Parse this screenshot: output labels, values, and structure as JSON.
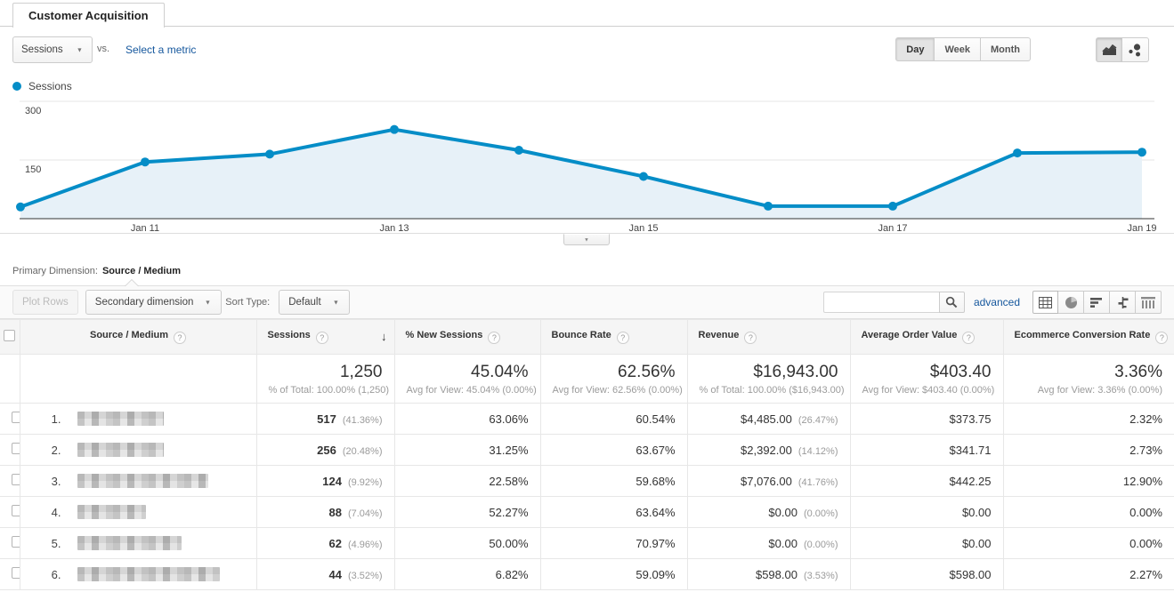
{
  "icons": {
    "help_glyph": "?",
    "caret_glyph": "▼",
    "sort_desc_glyph": "↓",
    "collapse_glyph": "▼"
  },
  "tab": {
    "title": "Customer Acquisition"
  },
  "controls": {
    "metric_button_label": "Sessions",
    "vs_label": "vs.",
    "select_metric_label": "Select a metric",
    "granularity": [
      {
        "label": "Day",
        "active": true
      },
      {
        "label": "Week",
        "active": false
      },
      {
        "label": "Month",
        "active": false
      }
    ]
  },
  "legend": {
    "label": "Sessions",
    "color": "#058dc7"
  },
  "chart_data": {
    "type": "area",
    "title": "Sessions by day",
    "x": [
      "Jan 10",
      "Jan 11",
      "Jan 12",
      "Jan 13",
      "Jan 14",
      "Jan 15",
      "Jan 16",
      "Jan 17",
      "Jan 18",
      "Jan 19"
    ],
    "series": [
      {
        "name": "Sessions",
        "values": [
          30,
          145,
          165,
          228,
          175,
          108,
          32,
          32,
          168,
          170
        ]
      }
    ],
    "x_tick_labels": [
      "Jan 11",
      "Jan 13",
      "Jan 15",
      "Jan 17",
      "Jan 19"
    ],
    "y_ticks": [
      150,
      300
    ],
    "ylim": [
      0,
      300
    ],
    "grid": true,
    "legend_position": "top-left",
    "line_color": "#058dc7",
    "fill_color": "#e7f1f8"
  },
  "primary_dimension": {
    "label": "Primary Dimension:",
    "value": "Source / Medium"
  },
  "toolbar": {
    "plot_rows_label": "Plot Rows",
    "secondary_dimension_label": "Secondary dimension",
    "sort_type_label": "Sort Type:",
    "sort_type_value": "Default",
    "search_value": "",
    "advanced_label": "advanced",
    "view_buttons": [
      "table-view",
      "percentage-view",
      "performance-view",
      "comparison-view",
      "pivot-view"
    ]
  },
  "table": {
    "headers": [
      "Source / Medium",
      "Sessions",
      "% New Sessions",
      "Bounce Rate",
      "Revenue",
      "Average Order Value",
      "Ecommerce Conversion Rate"
    ],
    "summary": {
      "sessions": "1,250",
      "sessions_sub": "% of Total: 100.00% (1,250)",
      "new_sessions": "45.04%",
      "new_sessions_sub": "Avg for View: 45.04% (0.00%)",
      "bounce_rate": "62.56%",
      "bounce_rate_sub": "Avg for View: 62.56% (0.00%)",
      "revenue": "$16,943.00",
      "revenue_sub": "% of Total: 100.00% ($16,943.00)",
      "aov": "$403.40",
      "aov_sub": "Avg for View: $403.40 (0.00%)",
      "ecr": "3.36%",
      "ecr_sub": "Avg for View: 3.36% (0.00%)"
    },
    "rows": [
      {
        "index": "1.",
        "redacted_width": 97,
        "sessions": "517",
        "sessions_pct": "(41.36%)",
        "new_sessions": "63.06%",
        "bounce_rate": "60.54%",
        "revenue": "$4,485.00",
        "revenue_pct": "(26.47%)",
        "aov": "$373.75",
        "ecr": "2.32%"
      },
      {
        "index": "2.",
        "redacted_width": 97,
        "sessions": "256",
        "sessions_pct": "(20.48%)",
        "new_sessions": "31.25%",
        "bounce_rate": "63.67%",
        "revenue": "$2,392.00",
        "revenue_pct": "(14.12%)",
        "aov": "$341.71",
        "ecr": "2.73%"
      },
      {
        "index": "3.",
        "redacted_width": 147,
        "sessions": "124",
        "sessions_pct": "(9.92%)",
        "new_sessions": "22.58%",
        "bounce_rate": "59.68%",
        "revenue": "$7,076.00",
        "revenue_pct": "(41.76%)",
        "aov": "$442.25",
        "ecr": "12.90%"
      },
      {
        "index": "4.",
        "redacted_width": 77,
        "sessions": "88",
        "sessions_pct": "(7.04%)",
        "new_sessions": "52.27%",
        "bounce_rate": "63.64%",
        "revenue": "$0.00",
        "revenue_pct": "(0.00%)",
        "aov": "$0.00",
        "ecr": "0.00%"
      },
      {
        "index": "5.",
        "redacted_width": 117,
        "sessions": "62",
        "sessions_pct": "(4.96%)",
        "new_sessions": "50.00%",
        "bounce_rate": "70.97%",
        "revenue": "$0.00",
        "revenue_pct": "(0.00%)",
        "aov": "$0.00",
        "ecr": "0.00%"
      },
      {
        "index": "6.",
        "redacted_width": 160,
        "sessions": "44",
        "sessions_pct": "(3.52%)",
        "new_sessions": "6.82%",
        "bounce_rate": "59.09%",
        "revenue": "$598.00",
        "revenue_pct": "(3.53%)",
        "aov": "$598.00",
        "ecr": "2.27%"
      }
    ]
  }
}
